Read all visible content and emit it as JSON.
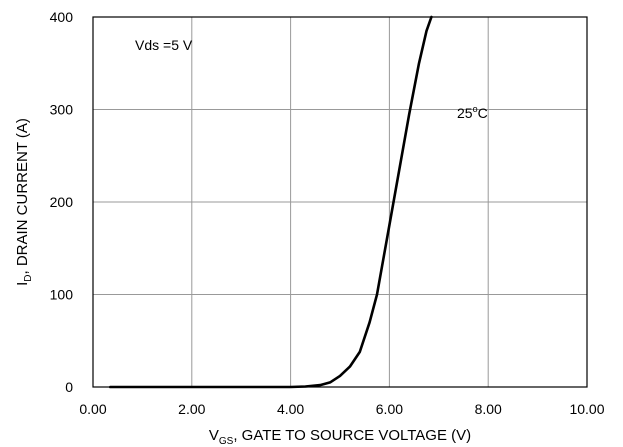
{
  "chart_data": {
    "type": "line",
    "title": "",
    "xlabel": {
      "prefix": "V",
      "subscript": "GS",
      "rest": ", GATE TO SOURCE VOLTAGE (V)"
    },
    "ylabel": {
      "prefix": "I",
      "subscript": "D",
      "rest": ", DRAIN CURRENT (A)"
    },
    "xlim": [
      0,
      10
    ],
    "ylim": [
      0,
      400
    ],
    "x_ticks": [
      0,
      2,
      4,
      6,
      8,
      10
    ],
    "x_tick_labels": [
      "0.00",
      "2.00",
      "4.00",
      "6.00",
      "8.00",
      "10.00"
    ],
    "y_ticks": [
      0,
      100,
      200,
      300,
      400
    ],
    "y_tick_labels": [
      "0",
      "100",
      "200",
      "300",
      "400"
    ],
    "grid": true,
    "annotations": {
      "condition": "Vds =5 V",
      "temp_value": "25",
      "temp_sup": "o",
      "temp_unit": "C"
    },
    "series": [
      {
        "x": [
          0.35,
          1.0,
          2.0,
          3.0,
          4.0,
          4.3,
          4.6,
          4.8,
          5.0,
          5.2,
          5.4,
          5.6,
          5.75,
          6.0,
          6.2,
          6.4,
          6.6,
          6.75,
          6.85
        ],
        "y": [
          0,
          0,
          0,
          0,
          0,
          0.5,
          2,
          5,
          12,
          22,
          38,
          70,
          100,
          175,
          235,
          295,
          350,
          385,
          400
        ]
      }
    ]
  }
}
